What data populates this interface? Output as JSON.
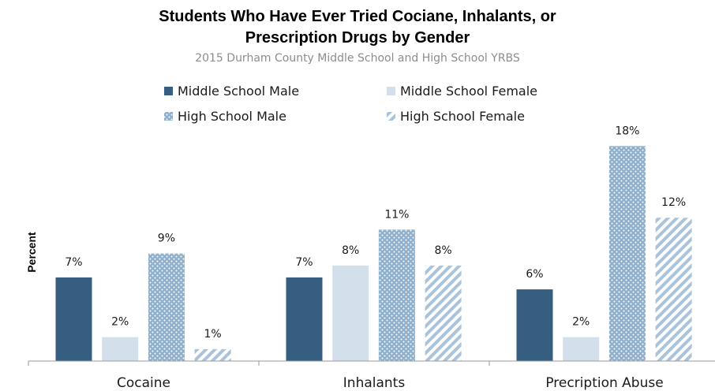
{
  "chart_data": {
    "type": "bar",
    "title_line1": "Students Who Have Ever Tried Cociane, Inhalants, or",
    "title_line2": "Prescription Drugs by Gender",
    "subtitle": "2015 Durham County Middle School and High School YRBS",
    "ylabel": "Percent",
    "categories": [
      "Cocaine",
      "Inhalants",
      "Precription Abuse"
    ],
    "series": [
      {
        "name": "Middle School Male",
        "values": [
          7,
          7,
          6
        ],
        "labels": [
          "7%",
          "7%",
          "6%"
        ],
        "color": "#355e80",
        "style": "solid"
      },
      {
        "name": "Middle School Female",
        "values": [
          2,
          8,
          2
        ],
        "labels": [
          "2%",
          "8%",
          "2%"
        ],
        "color": "#d3e0eb",
        "style": "solid"
      },
      {
        "name": "High School Male",
        "values": [
          9,
          11,
          18
        ],
        "labels": [
          "9%",
          "11%",
          "18%"
        ],
        "color": "#8fafcb",
        "style": "dots"
      },
      {
        "name": "High School Female",
        "values": [
          1,
          8,
          12
        ],
        "labels": [
          "1%",
          "8%",
          "12%"
        ],
        "color": "#a9c3da",
        "style": "stripes"
      }
    ],
    "ylim": [
      0,
      20
    ],
    "grid": false,
    "legend_position": "top"
  }
}
